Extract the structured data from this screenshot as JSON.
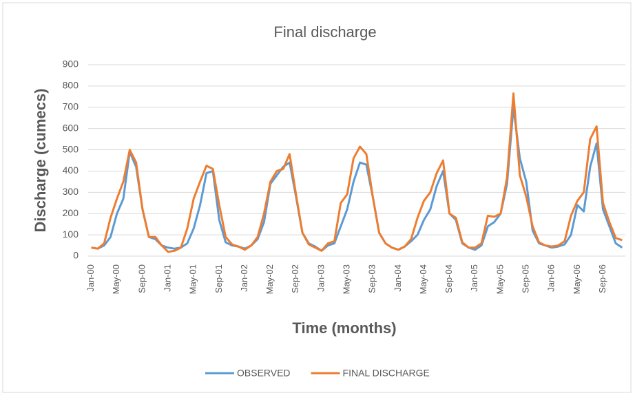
{
  "chart_data": {
    "type": "line",
    "title": "Final discharge",
    "x_label": "Time (months)",
    "y_label": "Discharge (cumecs)",
    "categories": [
      "Jan-00",
      null,
      null,
      null,
      "May-00",
      null,
      null,
      null,
      "Sep-00",
      null,
      null,
      null,
      "Jan-01",
      null,
      null,
      null,
      "May-01",
      null,
      null,
      null,
      "Sep-01",
      null,
      null,
      null,
      "Jan-02",
      null,
      null,
      null,
      "May-02",
      null,
      null,
      null,
      "Sep-02",
      null,
      null,
      null,
      "Jan-03",
      null,
      null,
      null,
      "May-03",
      null,
      null,
      null,
      "Sep-03",
      null,
      null,
      null,
      "Jan-04",
      null,
      null,
      null,
      "May-04",
      null,
      null,
      null,
      "Sep-04",
      null,
      null,
      null,
      "Jan-05",
      null,
      null,
      null,
      "May-05",
      null,
      null,
      null,
      "Sep-05",
      null,
      null,
      null,
      "Jan-06",
      null,
      null,
      null,
      "May-06",
      null,
      null,
      null,
      "Sep-06",
      null,
      null,
      null
    ],
    "series": [
      {
        "name": "OBSERVED",
        "color": "#5b9bd5",
        "values": [
          40,
          35,
          50,
          90,
          200,
          270,
          490,
          420,
          220,
          90,
          80,
          50,
          40,
          35,
          40,
          60,
          130,
          240,
          390,
          400,
          170,
          65,
          50,
          45,
          35,
          50,
          80,
          160,
          340,
          380,
          420,
          440,
          280,
          110,
          60,
          45,
          25,
          50,
          60,
          140,
          220,
          350,
          440,
          430,
          280,
          110,
          60,
          40,
          30,
          45,
          70,
          100,
          170,
          220,
          330,
          400,
          200,
          170,
          60,
          40,
          30,
          50,
          140,
          160,
          200,
          340,
          700,
          460,
          350,
          120,
          60,
          50,
          40,
          45,
          55,
          100,
          240,
          210,
          420,
          530,
          220,
          140,
          60,
          40
        ]
      },
      {
        "name": "FINAL DISCHARGE",
        "color": "#ed7d31",
        "values": [
          40,
          35,
          60,
          180,
          270,
          350,
          500,
          440,
          220,
          90,
          90,
          50,
          20,
          25,
          40,
          130,
          270,
          350,
          425,
          410,
          240,
          90,
          55,
          45,
          30,
          50,
          90,
          200,
          350,
          400,
          410,
          480,
          290,
          110,
          55,
          40,
          25,
          60,
          70,
          250,
          290,
          460,
          515,
          480,
          280,
          110,
          60,
          40,
          30,
          45,
          80,
          180,
          260,
          300,
          390,
          450,
          200,
          180,
          65,
          40,
          40,
          60,
          190,
          185,
          200,
          370,
          765,
          380,
          280,
          140,
          65,
          50,
          45,
          50,
          70,
          190,
          260,
          300,
          550,
          610,
          250,
          160,
          85,
          75
        ]
      }
    ],
    "ylim": [
      0,
      900
    ],
    "yticks": [
      0,
      100,
      200,
      300,
      400,
      500,
      600,
      700,
      800,
      900
    ],
    "grid": true,
    "legend": "bottom"
  }
}
